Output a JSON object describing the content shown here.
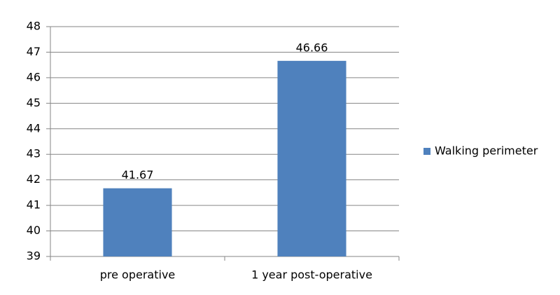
{
  "chart_data": {
    "type": "bar",
    "categories": [
      "pre operative",
      "1 year post-operative"
    ],
    "series": [
      {
        "name": "Walking perimeter",
        "color": "#4f81bd",
        "values": [
          41.67,
          46.66
        ]
      }
    ],
    "ylim": [
      39,
      48
    ],
    "yticks": [
      39,
      40,
      41,
      42,
      43,
      44,
      45,
      46,
      47,
      48
    ],
    "grid": true,
    "legend": "right"
  }
}
